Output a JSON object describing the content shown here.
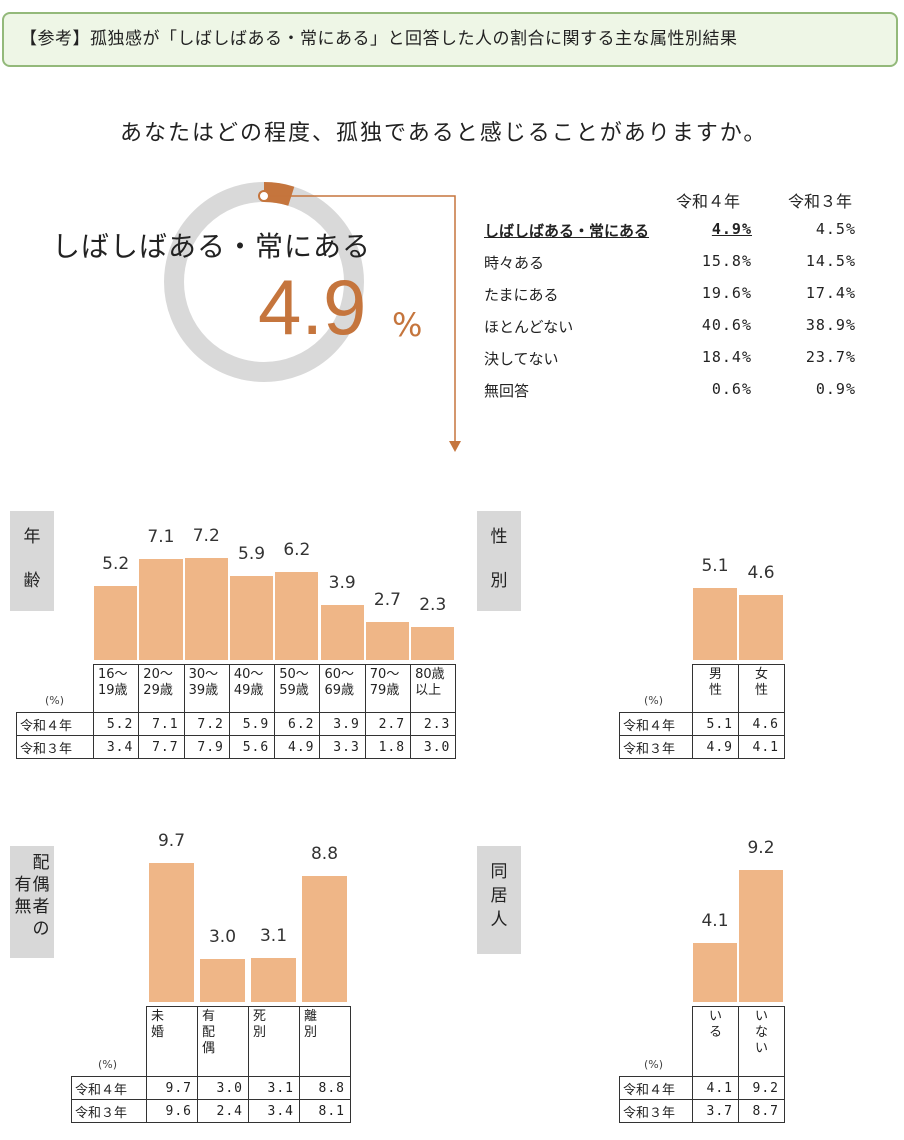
{
  "header": "【参考】孤独感が「しばしばある・常にある」と回答した人の割合に関する主な属性別結果",
  "question": "あなたはどの程度、孤独であると感じることがありますか。",
  "highlight": {
    "label": "しばしばある・常にある",
    "value": "4.9",
    "unit": "%",
    "fraction": 0.049,
    "accent": "#c5753d",
    "ring_color": "#d9d9d9"
  },
  "response_table": {
    "col_r4": "令和４年",
    "col_r3": "令和３年",
    "rows": [
      {
        "label": "しばしばある・常にある",
        "r4": "4.9%",
        "r3": "4.5%"
      },
      {
        "label": "時々ある",
        "r4": "15.8%",
        "r3": "14.5%"
      },
      {
        "label": "たまにある",
        "r4": "19.6%",
        "r3": "17.4%"
      },
      {
        "label": "ほとんどない",
        "r4": "40.6%",
        "r3": "38.9%"
      },
      {
        "label": "決してない",
        "r4": "18.4%",
        "r3": "23.7%"
      },
      {
        "label": "無回答",
        "r4": "0.6%",
        "r3": "0.9%"
      }
    ]
  },
  "pct_label": "(%)",
  "row_r4": "令和４年",
  "row_r3": "令和３年",
  "bar_color": "#efb687",
  "chart_data": [
    {
      "type": "bar",
      "group_label": [
        "年",
        "齢"
      ],
      "categories": [
        "16～19歳",
        "20～29歳",
        "30～39歳",
        "40～49歳",
        "50～59歳",
        "60～69歳",
        "70～79歳",
        "80歳以上"
      ],
      "cat_lines": [
        [
          "16～",
          "19歳"
        ],
        [
          "20～",
          "29歳"
        ],
        [
          "30～",
          "39歳"
        ],
        [
          "40～",
          "49歳"
        ],
        [
          "50～",
          "59歳"
        ],
        [
          "60～",
          "69歳"
        ],
        [
          "70～",
          "79歳"
        ],
        [
          "80歳",
          "以上"
        ]
      ],
      "values": [
        5.2,
        7.1,
        7.2,
        5.9,
        6.2,
        3.9,
        2.7,
        2.3
      ],
      "value_labels": [
        "5.2",
        "7.1",
        "7.2",
        "5.9",
        "6.2",
        "3.9",
        "2.7",
        "2.3"
      ],
      "r4": [
        "5.2",
        "7.1",
        "7.2",
        "5.9",
        "6.2",
        "3.9",
        "2.7",
        "2.3"
      ],
      "r3": [
        "3.4",
        "7.7",
        "7.9",
        "5.6",
        "4.9",
        "3.3",
        "1.8",
        "3.0"
      ]
    },
    {
      "type": "bar",
      "group_label": [
        "性",
        "別"
      ],
      "categories": [
        "男性",
        "女性"
      ],
      "cat_lines": [
        [
          "男",
          "性"
        ],
        [
          "女",
          "性"
        ]
      ],
      "values": [
        5.1,
        4.6
      ],
      "value_labels": [
        "5.1",
        "4.6"
      ],
      "r4": [
        "5.1",
        "4.6"
      ],
      "r3": [
        "4.9",
        "4.1"
      ]
    },
    {
      "type": "bar",
      "group_label": [
        "配",
        "偶",
        "者",
        "の",
        "有",
        "無"
      ],
      "categories": [
        "未婚",
        "有配偶",
        "死別",
        "離別"
      ],
      "cat_lines": [
        [
          "未",
          "婚"
        ],
        [
          "有",
          "配",
          "偶"
        ],
        [
          "死",
          "別"
        ],
        [
          "離",
          "別"
        ]
      ],
      "values": [
        9.7,
        3.0,
        3.1,
        8.8
      ],
      "value_labels": [
        "9.7",
        "3.0",
        "3.1",
        "8.8"
      ],
      "r4": [
        "9.7",
        "3.0",
        "3.1",
        "8.8"
      ],
      "r3": [
        "9.6",
        "2.4",
        "3.4",
        "8.1"
      ]
    },
    {
      "type": "bar",
      "group_label": [
        "同",
        "居",
        "人"
      ],
      "categories": [
        "いる",
        "いない"
      ],
      "cat_lines": [
        [
          "い",
          "る"
        ],
        [
          "い",
          "な",
          "い"
        ]
      ],
      "values": [
        4.1,
        9.2
      ],
      "value_labels": [
        "4.1",
        "9.2"
      ],
      "r4": [
        "4.1",
        "9.2"
      ],
      "r3": [
        "3.7",
        "8.7"
      ]
    }
  ]
}
